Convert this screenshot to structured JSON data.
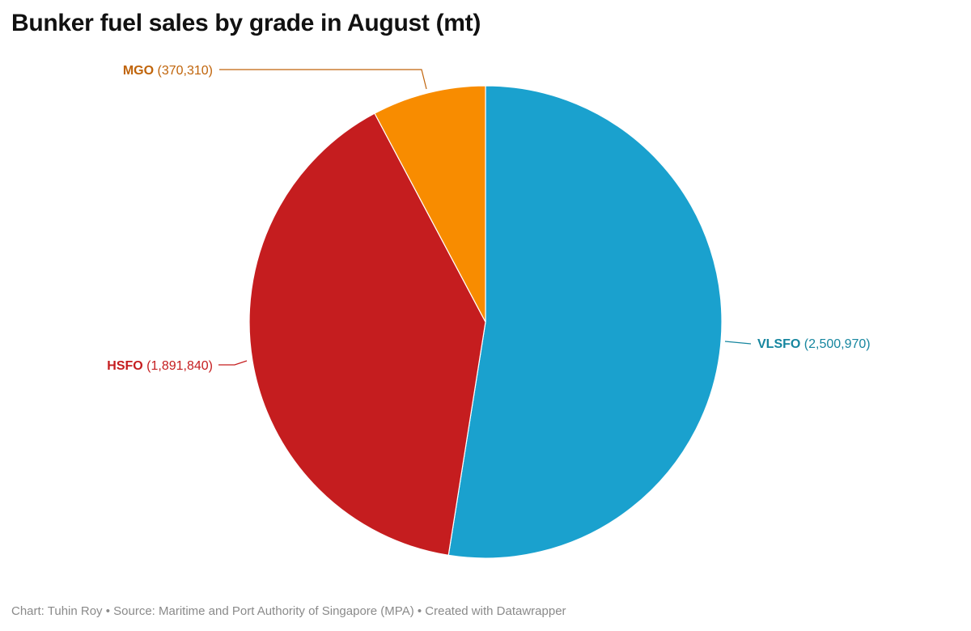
{
  "chart_data": {
    "type": "pie",
    "title": "Bunker fuel sales by grade in August (mt)",
    "slices": [
      {
        "label": "VLSFO",
        "value": 2500970,
        "display": "(2,500,970)",
        "color": "#1aa1ce",
        "label_color": "#16869f"
      },
      {
        "label": "HSFO",
        "value": 1891840,
        "display": "(1,891,840)",
        "color": "#c51d1f",
        "label_color": "#c51d1f"
      },
      {
        "label": "MGO",
        "value": 370310,
        "display": "(370,310)",
        "color": "#f88c00",
        "label_color": "#c0640a"
      }
    ],
    "start": "12 o'clock, clockwise",
    "legend": "none",
    "credit": "Chart: Tuhin Roy • Source: Maritime and Port Authority of Singapore (MPA) • Created with Datawrapper"
  }
}
